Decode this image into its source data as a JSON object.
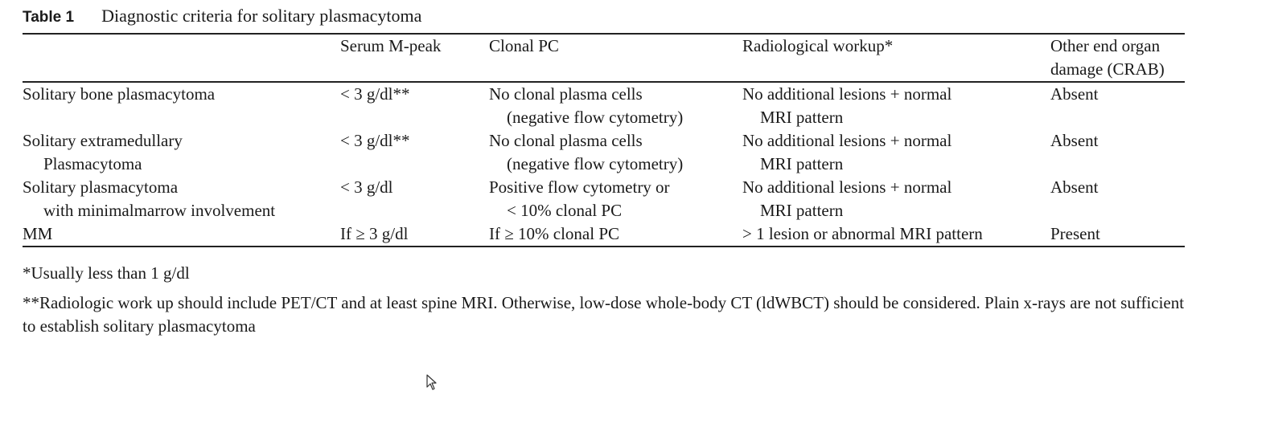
{
  "caption": {
    "label": "Table 1",
    "title": "Diagnostic criteria for solitary plasmacytoma"
  },
  "table": {
    "headers": [
      "",
      "Serum M-peak",
      "Clonal PC",
      "Radiological workup*",
      [
        "Other end organ",
        "damage (CRAB)"
      ]
    ],
    "rows": [
      {
        "condition": [
          "Solitary bone plasmacytoma"
        ],
        "serum": "< 3 g/dl**",
        "clonal": [
          "No clonal plasma cells",
          "(negative flow cytometry)"
        ],
        "radiological": [
          "No additional lesions + normal",
          "MRI pattern"
        ],
        "crab": "Absent"
      },
      {
        "condition": [
          "Solitary extramedullary",
          "Plasmacytoma"
        ],
        "serum": "< 3 g/dl**",
        "clonal": [
          "No clonal plasma cells",
          "(negative flow cytometry)"
        ],
        "radiological": [
          "No additional lesions + normal",
          "MRI pattern"
        ],
        "crab": "Absent"
      },
      {
        "condition": [
          "Solitary plasmacytoma",
          "with minimalmarrow involvement"
        ],
        "serum": "< 3 g/dl",
        "clonal": [
          "Positive flow cytometry or",
          "< 10% clonal PC"
        ],
        "radiological": [
          "No additional lesions + normal",
          "MRI pattern"
        ],
        "crab": "Absent"
      },
      {
        "condition": [
          "MM"
        ],
        "serum": "If ≥ 3 g/dl",
        "clonal": [
          "If ≥ 10% clonal PC"
        ],
        "radiological": [
          "> 1 lesion or abnormal MRI pattern"
        ],
        "crab": "Present"
      }
    ]
  },
  "footnotes": [
    "*Usually less than 1 g/dl",
    "**Radiologic work up should include PET/CT and at least spine MRI. Otherwise, low-dose whole-body CT (ldWBCT) should be considered. Plain x-rays are not sufficient to establish solitary plasmacytoma"
  ],
  "cursor": {
    "icon": "mouse-pointer-icon"
  }
}
